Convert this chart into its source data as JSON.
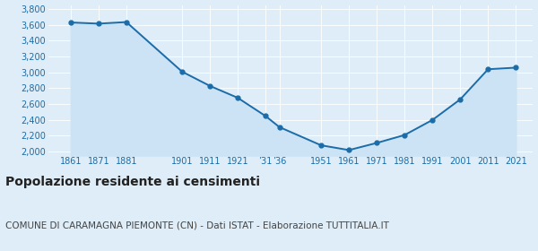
{
  "years": [
    1861,
    1871,
    1881,
    1901,
    1911,
    1921,
    1931,
    1936,
    1951,
    1961,
    1971,
    1981,
    1991,
    2001,
    2011,
    2021
  ],
  "values": [
    3630,
    3615,
    3635,
    3010,
    2830,
    2680,
    2450,
    2310,
    2080,
    2020,
    2110,
    2210,
    2400,
    2660,
    3040,
    3060
  ],
  "line_color": "#1b6ca8",
  "fill_color": "#cce3f5",
  "marker_color": "#1b6ca8",
  "background_color": "#deedf7",
  "plot_bg_color": "#deedf7",
  "grid_color": "#ffffff",
  "ylim": [
    1950,
    3850
  ],
  "yticks": [
    2000,
    2200,
    2400,
    2600,
    2800,
    3000,
    3200,
    3400,
    3600,
    3800
  ],
  "xlim_left": 1853,
  "xlim_right": 2027,
  "tick_positions": [
    1861,
    1871,
    1881,
    1901,
    1911,
    1921,
    1931,
    1936,
    1951,
    1961,
    1971,
    1981,
    1991,
    2001,
    2011,
    2021
  ],
  "tick_labels": [
    "1861",
    "1871",
    "1881",
    "1901",
    "1911",
    "1921",
    "’31",
    "’36",
    "1951",
    "1961",
    "1971",
    "1981",
    "1991",
    "2001",
    "2011",
    "2021"
  ],
  "title": "Popolazione residente ai censimenti",
  "subtitle": "COMUNE DI CARAMAGNA PIEMONTE (CN) - Dati ISTAT - Elaborazione TUTTITALIA.IT",
  "title_fontsize": 10,
  "subtitle_fontsize": 7.5,
  "tick_fontsize": 7,
  "axis_label_color": "#1b6ca8",
  "title_color": "#222222",
  "subtitle_color": "#444444"
}
